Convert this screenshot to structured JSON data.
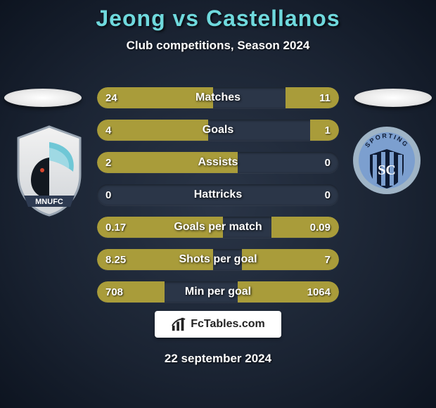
{
  "title_player1": "Jeong",
  "title_vs": "vs",
  "title_player2": "Castellanos",
  "title_color": "#6fd9dd",
  "subtitle": "Club competitions, Season 2024",
  "bars": {
    "track_bg": "#2b3648",
    "left_color": "#a99c3a",
    "right_color": "#a99c3a",
    "rows": [
      {
        "label": "Matches",
        "left": "24",
        "right": "11",
        "left_pct": 48,
        "right_pct": 22
      },
      {
        "label": "Goals",
        "left": "4",
        "right": "1",
        "left_pct": 46,
        "right_pct": 12
      },
      {
        "label": "Assists",
        "left": "2",
        "right": "0",
        "left_pct": 58,
        "right_pct": 0
      },
      {
        "label": "Hattricks",
        "left": "0",
        "right": "0",
        "left_pct": 0,
        "right_pct": 0
      },
      {
        "label": "Goals per match",
        "left": "0.17",
        "right": "0.09",
        "left_pct": 52,
        "right_pct": 28
      },
      {
        "label": "Shots per goal",
        "left": "8.25",
        "right": "7",
        "left_pct": 48,
        "right_pct": 40
      },
      {
        "label": "Min per goal",
        "left": "708",
        "right": "1064",
        "left_pct": 28,
        "right_pct": 42
      }
    ]
  },
  "footer_brand": "FcTables.com",
  "date": "22 september 2024",
  "team_left": {
    "name": "MNUFC",
    "badge_bg": "#e6e6e6",
    "badge_stroke": "#9aa6b3",
    "wing_color": "#6fc7d6",
    "body_color": "#121820",
    "banner_color": "#2e3b52",
    "banner_text": "MNUFC"
  },
  "team_right": {
    "name": "Sporting",
    "outer_color": "#9fb4c6",
    "blue": "#7c9fcf",
    "dark": "#0e1b34",
    "arc_text": "SPORTING"
  }
}
